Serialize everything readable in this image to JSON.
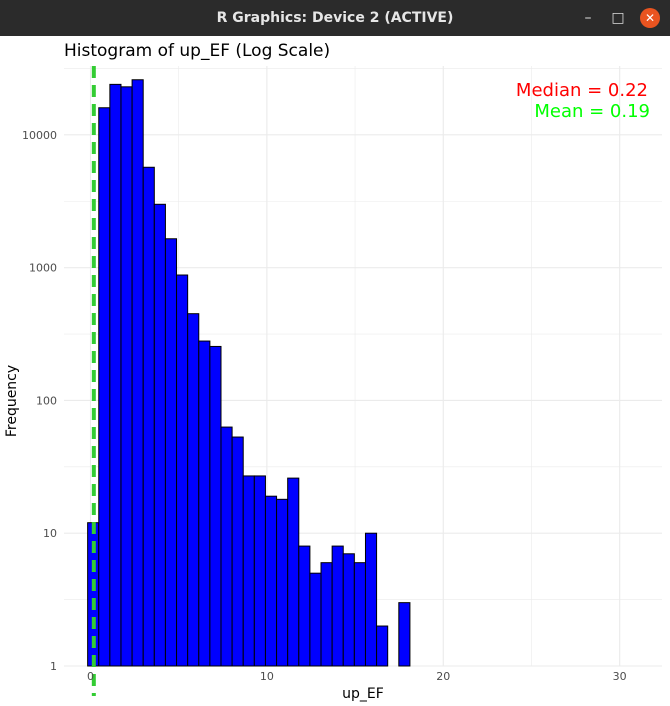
{
  "window": {
    "title": "R Graphics: Device 2 (ACTIVE)",
    "buttons": {
      "minimize": "–",
      "maximize": "□",
      "close": "✕"
    }
  },
  "colors": {
    "bar_fill": "#0000ff",
    "bar_stroke": "#000000",
    "mean_line": "#33cc33",
    "median_text": "#ff0000",
    "mean_text": "#00ff00",
    "grid": "#ebebeb",
    "titlebar_bg": "#2b2b2b",
    "close_button": "#e95420"
  },
  "chart_data": {
    "type": "bar",
    "title": "Histogram of up_EF (Log Scale)",
    "xlabel": "up_EF",
    "ylabel": "Frequency",
    "y_scale": "log10",
    "xlim": [
      -1.5,
      32.4
    ],
    "ylim": [
      1,
      33000
    ],
    "x_ticks": [
      0,
      10,
      20,
      30
    ],
    "x_tick_labels": [
      "0",
      "10",
      "20",
      "30"
    ],
    "y_ticks": [
      1,
      10,
      100,
      1000,
      10000
    ],
    "y_tick_labels": [
      "1",
      "10",
      "100",
      "1000",
      "10000"
    ],
    "grid": true,
    "bin_width": 0.63,
    "bins": [
      {
        "x": -0.16,
        "count": 12
      },
      {
        "x": 0.47,
        "count": 16000
      },
      {
        "x": 1.1,
        "count": 24000
      },
      {
        "x": 1.73,
        "count": 23000
      },
      {
        "x": 2.36,
        "count": 26000
      },
      {
        "x": 2.99,
        "count": 5700
      },
      {
        "x": 3.62,
        "count": 3000
      },
      {
        "x": 4.25,
        "count": 1650
      },
      {
        "x": 4.88,
        "count": 880
      },
      {
        "x": 5.51,
        "count": 450
      },
      {
        "x": 6.14,
        "count": 280
      },
      {
        "x": 6.77,
        "count": 255
      },
      {
        "x": 7.4,
        "count": 63
      },
      {
        "x": 8.03,
        "count": 53
      },
      {
        "x": 8.66,
        "count": 27
      },
      {
        "x": 9.29,
        "count": 27
      },
      {
        "x": 9.92,
        "count": 19
      },
      {
        "x": 10.55,
        "count": 18
      },
      {
        "x": 11.18,
        "count": 26
      },
      {
        "x": 11.81,
        "count": 8
      },
      {
        "x": 12.44,
        "count": 5
      },
      {
        "x": 13.07,
        "count": 6
      },
      {
        "x": 13.7,
        "count": 8
      },
      {
        "x": 14.33,
        "count": 7
      },
      {
        "x": 14.96,
        "count": 6
      },
      {
        "x": 15.59,
        "count": 10
      },
      {
        "x": 16.22,
        "count": 2
      },
      {
        "x": 17.48,
        "count": 3
      },
      {
        "x": 18.74,
        "count": 1
      },
      {
        "x": 19.37,
        "count": 1
      },
      {
        "x": 20.63,
        "count": 1
      },
      {
        "x": 21.26,
        "count": 1
      },
      {
        "x": 25.67,
        "count": 1
      },
      {
        "x": 30.71,
        "count": 1
      }
    ],
    "vline": {
      "x": 0.19,
      "style": "dashed",
      "color": "#33cc33"
    },
    "annotations": [
      {
        "text": "Median = 0.22",
        "color": "#ff0000"
      },
      {
        "text": "Mean = 0.19",
        "color": "#00ff00"
      }
    ],
    "annotation_position": "top-right"
  }
}
